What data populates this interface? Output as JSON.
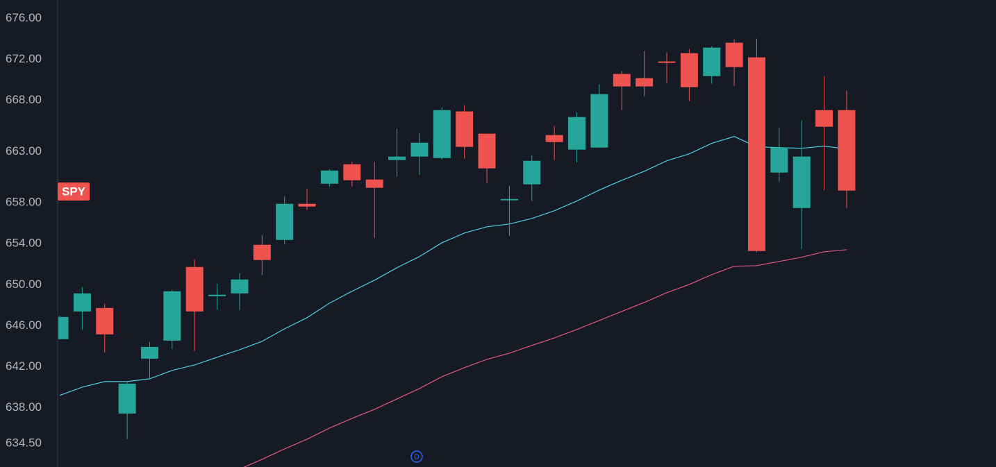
{
  "chart_data": {
    "type": "candlestick",
    "symbol": "SPY",
    "symbol_color": "#ef5350",
    "marker_label": "D",
    "marker_color": "#2962ff",
    "up_color": "#26a69a",
    "down_color": "#ef5350",
    "ylim": [
      632.2,
      677.8
    ],
    "yticks": [
      {
        "value": 676,
        "label": "676.00"
      },
      {
        "value": 672,
        "label": "672.00"
      },
      {
        "value": 668,
        "label": "668.00"
      },
      {
        "value": 663,
        "label": "663.00"
      },
      {
        "value": 658,
        "label": "658.00"
      },
      {
        "value": 654,
        "label": "654.00"
      },
      {
        "value": 650,
        "label": "650.00"
      },
      {
        "value": 646,
        "label": "646.00"
      },
      {
        "value": 642,
        "label": "642.00"
      },
      {
        "value": 638,
        "label": "638.00"
      },
      {
        "value": 634.5,
        "label": "634.50"
      }
    ],
    "open": [
      644.68,
      647.39,
      647.73,
      637.42,
      642.78,
      644.54,
      651.73,
      648.88,
      649.15,
      653.9,
      654.37,
      657.9,
      659.86,
      661.76,
      660.27,
      662.17,
      662.51,
      662.37,
      666.92,
      664.75,
      658.24,
      659.8,
      664.61,
      663.19,
      663.39,
      670.58,
      670.17,
      671.8,
      672.61,
      670.37,
      673.63,
      672.2,
      660.95,
      657.49,
      667.05,
      667.05
    ],
    "high": [
      646.98,
      649.76,
      648.14,
      640.61,
      644.41,
      649.49,
      652.47,
      650.1,
      651.12,
      654.85,
      658.64,
      659.39,
      661.29,
      661.97,
      661.97,
      665.22,
      664.81,
      667.32,
      667.53,
      664.75,
      659.66,
      662.64,
      665.49,
      666.85,
      669.56,
      670.85,
      672.81,
      672.68,
      673.02,
      673.29,
      673.97,
      674.03,
      665.36,
      666.03,
      670.37,
      668.95
    ],
    "low": [
      644.68,
      645.63,
      643.39,
      634.92,
      640.75,
      643.73,
      643.53,
      647.53,
      647.53,
      650.92,
      653.97,
      657.29,
      659.59,
      659.59,
      654.58,
      660.54,
      660.75,
      662.24,
      662.31,
      659.93,
      654.78,
      658.17,
      662.17,
      661.97,
      663.39,
      667.05,
      668.41,
      669.69,
      667.93,
      669.63,
      669.42,
      653.15,
      660.07,
      653.49,
      659.25,
      657.49
    ],
    "close": [
      646.85,
      649.15,
      645.15,
      640.34,
      643.93,
      649.36,
      647.39,
      649.02,
      650.51,
      652.41,
      657.9,
      657.63,
      661.15,
      660.2,
      659.46,
      662.51,
      663.86,
      667.05,
      663.46,
      661.36,
      658.37,
      662.1,
      663.93,
      666.37,
      668.61,
      669.36,
      669.36,
      671.66,
      669.29,
      673.15,
      671.25,
      653.29,
      663.39,
      662.51,
      665.42,
      659.19
    ],
    "lines": [
      {
        "color": "#4dd0e1",
        "values": [
          639.19,
          640.0,
          640.54,
          640.54,
          640.81,
          641.63,
          642.17,
          642.92,
          643.66,
          644.47,
          645.69,
          646.78,
          648.2,
          649.36,
          650.44,
          651.66,
          652.75,
          654.1,
          655.05,
          655.66,
          655.93,
          656.47,
          657.22,
          658.17,
          659.25,
          660.2,
          661.08,
          662.1,
          662.78,
          663.8,
          664.47,
          663.46,
          663.39,
          663.32,
          663.53,
          663.25
        ]
      },
      {
        "color": "#e0578f",
        "values": [
          null,
          null,
          null,
          null,
          null,
          null,
          null,
          null,
          632.0,
          632.95,
          633.97,
          634.92,
          636.0,
          636.95,
          637.83,
          638.85,
          639.86,
          641.02,
          641.9,
          642.71,
          643.32,
          644.07,
          644.81,
          645.63,
          646.51,
          647.39,
          648.27,
          649.22,
          650.03,
          650.98,
          651.8,
          651.86,
          652.27,
          652.68,
          653.22,
          653.42
        ]
      }
    ]
  }
}
